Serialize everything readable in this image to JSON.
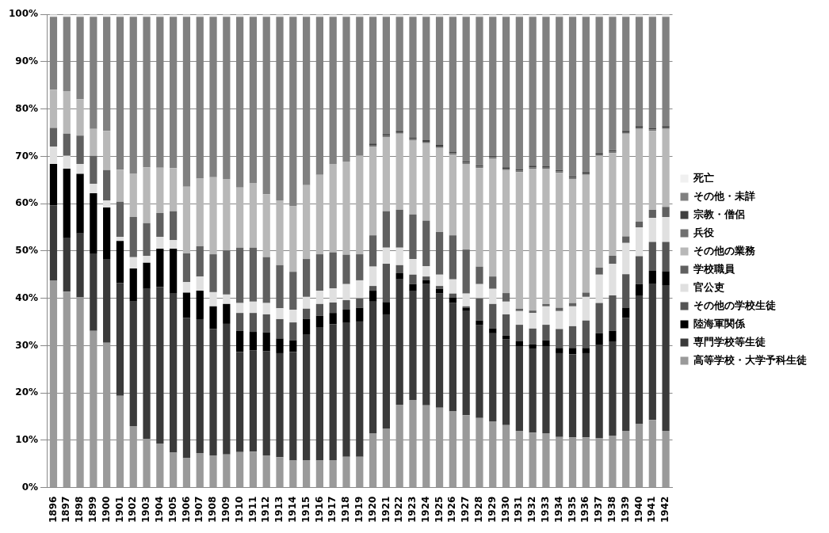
{
  "chart_data": {
    "type": "bar",
    "stacked": true,
    "categories": [
      "1896",
      "1897",
      "1898",
      "1899",
      "1900",
      "1901",
      "1902",
      "1903",
      "1904",
      "1905",
      "1906",
      "1907",
      "1908",
      "1909",
      "1910",
      "1911",
      "1912",
      "1913",
      "1914",
      "1915",
      "1916",
      "1917",
      "1918",
      "1919",
      "1920",
      "1921",
      "1922",
      "1923",
      "1924",
      "1925",
      "1926",
      "1927",
      "1928",
      "1929",
      "1930",
      "1931",
      "1932",
      "1933",
      "1934",
      "1935",
      "1936",
      "1937",
      "1938",
      "1939",
      "1940",
      "1941",
      "1942"
    ],
    "ylim": [
      0,
      100
    ],
    "yticks": [
      {
        "value": 0,
        "label": "0%"
      },
      {
        "value": 10,
        "label": "10%"
      },
      {
        "value": 20,
        "label": "20%"
      },
      {
        "value": 30,
        "label": "30%"
      },
      {
        "value": 40,
        "label": "40%"
      },
      {
        "value": 50,
        "label": "50%"
      },
      {
        "value": 60,
        "label": "60%"
      },
      {
        "value": 70,
        "label": "70%"
      },
      {
        "value": 80,
        "label": "80%"
      },
      {
        "value": 90,
        "label": "90%"
      },
      {
        "value": 100,
        "label": "100%"
      }
    ],
    "grid": "y",
    "legend": "right",
    "series": [
      {
        "name": "高等学校・大学予科生徒",
        "color": "#9a9a9a",
        "values": [
          43.8,
          41.4,
          40.2,
          33.1,
          30.6,
          19.4,
          13.0,
          10.3,
          9.3,
          7.4,
          6.2,
          7.3,
          6.8,
          7.0,
          7.5,
          7.6,
          6.8,
          6.4,
          5.7,
          5.8,
          5.7,
          5.8,
          6.5,
          6.5,
          11.5,
          12.5,
          17.5,
          18.5,
          17.4,
          16.9,
          16.1,
          15.3,
          14.7,
          14.0,
          13.2,
          12.0,
          11.6,
          11.5,
          10.7,
          10.6,
          10.6,
          10.4,
          11.0,
          12.0,
          13.4,
          14.3,
          12.0
        ]
      },
      {
        "name": "専門学校等生徒",
        "color": "#3a3a3a",
        "values": [
          15.8,
          11.3,
          13.5,
          16.4,
          17.7,
          23.8,
          26.3,
          31.7,
          33.1,
          33.7,
          29.7,
          28.3,
          26.7,
          27.6,
          21.2,
          21.4,
          22.0,
          22.0,
          23.0,
          26.6,
          28.2,
          28.7,
          28.4,
          28.6,
          27.8,
          24.1,
          26.5,
          23.1,
          25.6,
          24.1,
          22.9,
          22.0,
          19.6,
          18.6,
          18.1,
          17.9,
          17.8,
          18.4,
          17.7,
          17.6,
          17.8,
          19.7,
          19.9,
          23.9,
          27.2,
          28.7,
          30.8
        ]
      },
      {
        "name": "陸海軍関係",
        "color": "#000000",
        "values": [
          8.8,
          14.7,
          12.6,
          12.7,
          10.9,
          8.9,
          7.0,
          5.5,
          8.1,
          9.4,
          5.3,
          6.0,
          4.8,
          4.2,
          4.4,
          3.9,
          4.0,
          3.1,
          2.4,
          3.2,
          2.4,
          2.4,
          2.7,
          2.9,
          2.3,
          2.6,
          1.3,
          1.4,
          0.8,
          1.0,
          1.1,
          0.7,
          1.0,
          1.0,
          0.8,
          1.0,
          0.9,
          1.2,
          1.1,
          1.3,
          1.1,
          2.5,
          2.2,
          2.1,
          2.4,
          2.8,
          2.9
        ]
      },
      {
        "name": "その他の学校生徒",
        "color": "#555555",
        "values": [
          0,
          0,
          0,
          0,
          0,
          0,
          0,
          0,
          0,
          0,
          0,
          0,
          0,
          0,
          3.8,
          4.0,
          3.8,
          4.1,
          3.8,
          2.2,
          2.5,
          2.2,
          2.0,
          2.0,
          1.0,
          8.1,
          1.7,
          2.0,
          0.8,
          0.6,
          0.9,
          0.3,
          4.7,
          5.2,
          4.5,
          3.5,
          3.3,
          3.3,
          4.0,
          4.6,
          5.8,
          6.4,
          7.5,
          7.1,
          5.9,
          6.1,
          6.2
        ]
      },
      {
        "name": "官公吏",
        "color": "#e0e0e0",
        "values": [
          3.7,
          2.7,
          2.1,
          2.0,
          1.5,
          0.9,
          2.4,
          1.5,
          2.5,
          1.8,
          2.2,
          3.0,
          3.0,
          2.0,
          2.1,
          2.4,
          2.4,
          2.3,
          2.7,
          2.5,
          2.8,
          3.0,
          3.4,
          3.8,
          4.1,
          3.4,
          3.7,
          3.3,
          2.2,
          2.4,
          3.0,
          2.7,
          3.0,
          3.2,
          2.7,
          2.9,
          3.3,
          3.9,
          3.8,
          4.2,
          5.0,
          6.0,
          6.7,
          6.6,
          6.1,
          5.1,
          5.3
        ]
      },
      {
        "name": "学校職員",
        "color": "#606060",
        "values": [
          3.9,
          4.7,
          6.0,
          5.9,
          6.4,
          7.4,
          8.5,
          6.9,
          5.0,
          6.1,
          6.1,
          6.4,
          8.0,
          9.3,
          11.7,
          11.4,
          9.7,
          9.1,
          8.0,
          8.0,
          7.7,
          7.6,
          6.2,
          5.5,
          6.6,
          7.7,
          8.0,
          9.4,
          9.6,
          9.0,
          9.3,
          9.3,
          3.7,
          2.6,
          1.8,
          0.5,
          0.5,
          0.5,
          0.7,
          0.7,
          0.9,
          1.5,
          1.7,
          1.4,
          1.2,
          1.7,
          2.1
        ]
      },
      {
        "name": "その他の業務",
        "color": "#b8b8b8",
        "values": [
          8.1,
          9.0,
          7.7,
          5.7,
          8.3,
          6.8,
          9.2,
          11.8,
          9.6,
          9.1,
          14.1,
          14.3,
          16.3,
          15.1,
          12.7,
          13.7,
          13.3,
          13.7,
          13.9,
          15.6,
          16.8,
          18.7,
          19.7,
          20.8,
          18.8,
          15.7,
          16.1,
          15.7,
          16.4,
          17.8,
          17.1,
          18.1,
          20.8,
          24.9,
          26.0,
          28.9,
          30.0,
          28.5,
          28.5,
          26.2,
          24.9,
          23.6,
          21.7,
          21.7,
          19.6,
          16.7,
          16.5
        ]
      },
      {
        "name": "兵役",
        "color": "#707070",
        "values": [
          0,
          0,
          0,
          0,
          0,
          0,
          0,
          0,
          0,
          0,
          0,
          0,
          0,
          0,
          0,
          0,
          0,
          0,
          0,
          0,
          0,
          0,
          0,
          0,
          0.3,
          0.3,
          0.3,
          0.3,
          0.3,
          0.3,
          0.3,
          0.3,
          0.3,
          0.3,
          0.3,
          0.3,
          0.3,
          0.3,
          0.3,
          0.3,
          0.3,
          0.3,
          0.3,
          0.3,
          0.3,
          0.3,
          0.3
        ]
      },
      {
        "name": "宗教・僧侶",
        "color": "#404040",
        "values": [
          0,
          0,
          0,
          0,
          0,
          0,
          0,
          0,
          0,
          0,
          0,
          0,
          0,
          0,
          0,
          0,
          0,
          0,
          0,
          0,
          0,
          0,
          0,
          0,
          0.3,
          0.3,
          0.3,
          0.3,
          0.3,
          0.3,
          0.3,
          0.3,
          0.3,
          0.3,
          0.3,
          0.3,
          0.3,
          0.3,
          0.3,
          0.3,
          0.3,
          0.3,
          0.3,
          0.3,
          0.3,
          0.3,
          0.3
        ]
      },
      {
        "name": "その他・未詳",
        "color": "#808080",
        "values": [
          15.4,
          15.7,
          17.4,
          23.7,
          24.1,
          32.3,
          33.1,
          31.8,
          31.9,
          32.0,
          35.9,
          34.2,
          33.9,
          34.3,
          36.1,
          35.1,
          37.5,
          38.8,
          40.0,
          35.6,
          33.4,
          31.1,
          30.6,
          29.4,
          26.8,
          24.8,
          24.1,
          25.5,
          26.1,
          27.1,
          28.5,
          30.5,
          31.4,
          29.4,
          31.8,
          32.2,
          31.5,
          31.6,
          32.4,
          33.7,
          32.8,
          28.8,
          28.2,
          24.1,
          23.1,
          23.5,
          23.1
        ]
      },
      {
        "name": "死亡",
        "color": "#f0f0f0",
        "values": [
          0.5,
          0.5,
          0.5,
          0.5,
          0.5,
          0.5,
          0.5,
          0.5,
          0.5,
          0.5,
          0.5,
          0.5,
          0.5,
          0.5,
          0.5,
          0.5,
          0.5,
          0.5,
          0.5,
          0.5,
          0.5,
          0.5,
          0.5,
          0.5,
          0.5,
          0.5,
          0.5,
          0.5,
          0.5,
          0.5,
          0.5,
          0.5,
          0.5,
          0.5,
          0.5,
          0.5,
          0.5,
          0.5,
          0.5,
          0.5,
          0.5,
          0.5,
          0.5,
          0.5,
          0.5,
          0.5,
          0.5
        ]
      }
    ]
  }
}
